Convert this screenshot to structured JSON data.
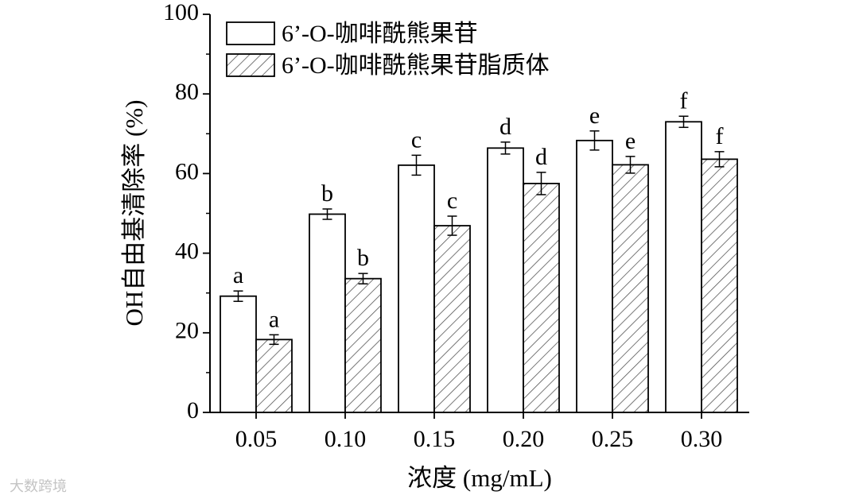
{
  "chart_data": {
    "type": "bar",
    "xlabel": "浓度 (mg/mL)",
    "ylabel": "OH自由基清除率 (%)",
    "ylim": [
      0,
      100
    ],
    "yticks": [
      0,
      20,
      40,
      60,
      80,
      100
    ],
    "categories": [
      "0.05",
      "0.10",
      "0.15",
      "0.20",
      "0.25",
      "0.30"
    ],
    "legend_position": "top-left",
    "series": [
      {
        "name": "6’-O-咖啡酰熊果苷",
        "fill": "none",
        "values": [
          29.2,
          49.8,
          62.1,
          66.4,
          68.3,
          73.0
        ],
        "errors": [
          1.3,
          1.3,
          2.5,
          1.5,
          2.4,
          1.4
        ],
        "labels": [
          "a",
          "b",
          "c",
          "d",
          "e",
          "f"
        ]
      },
      {
        "name": "6’-O-咖啡酰熊果苷脂质体",
        "fill": "hatched",
        "values": [
          18.3,
          33.6,
          46.9,
          57.5,
          62.2,
          63.6
        ],
        "errors": [
          1.2,
          1.3,
          2.4,
          2.8,
          2.1,
          1.9
        ],
        "labels": [
          "a",
          "b",
          "c",
          "d",
          "e",
          "f"
        ]
      }
    ]
  },
  "watermark": "大数跨境"
}
